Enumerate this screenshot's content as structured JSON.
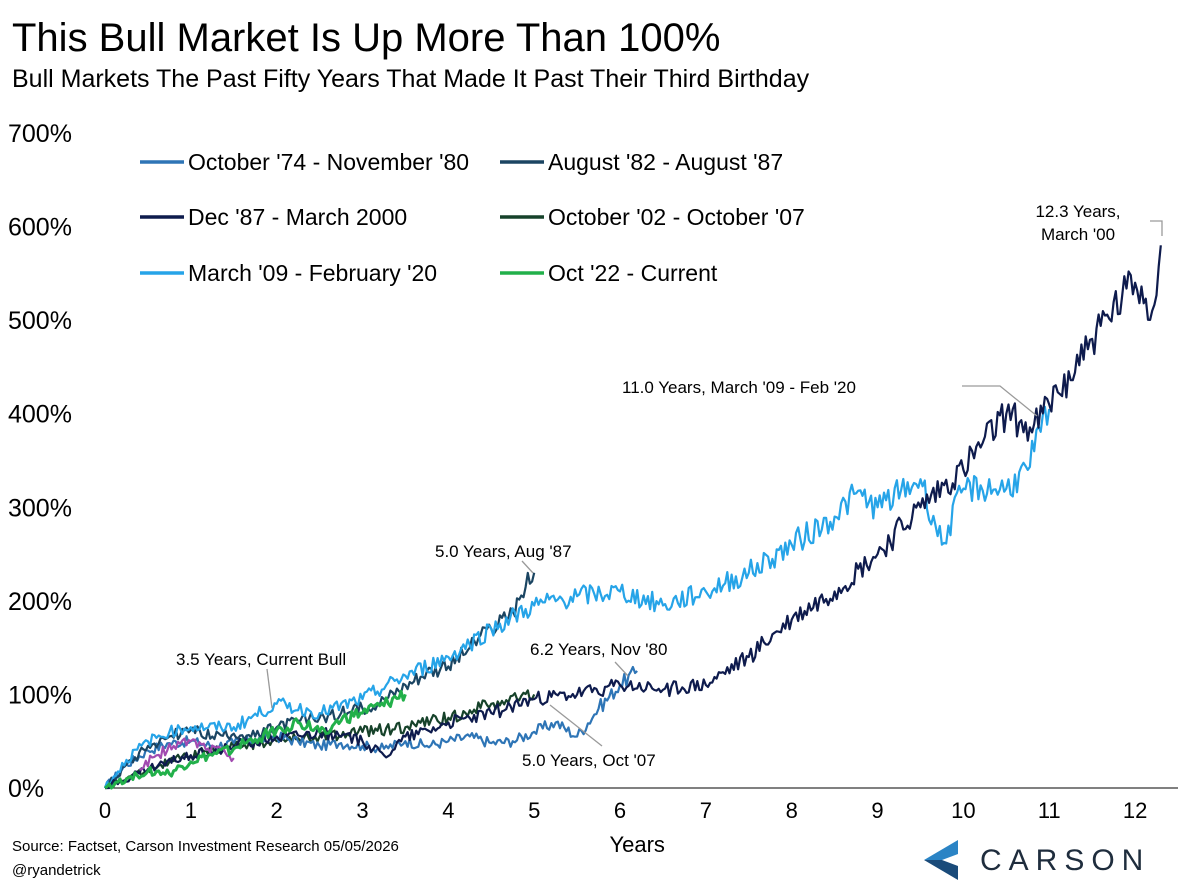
{
  "header": {
    "title": "This Bull Market Is Up More Than 100%",
    "subtitle": "Bull Markets The Past Fifty Years That Made It Past Their Third Birthday"
  },
  "footer": {
    "source": "Source: Factset, Carson Investment Research 05/05/2026",
    "handle": "@ryandetrick",
    "logo_text": "CARSON"
  },
  "chart_data": {
    "type": "line",
    "xlabel": "Years",
    "ylabel": "",
    "xlim": [
      0,
      12.5
    ],
    "ylim": [
      0,
      700
    ],
    "x_ticks": [
      "0",
      "1",
      "2",
      "3",
      "4",
      "5",
      "6",
      "7",
      "8",
      "9",
      "10",
      "11",
      "12"
    ],
    "y_ticks": [
      "0%",
      "100%",
      "200%",
      "300%",
      "400%",
      "500%",
      "600%",
      "700%"
    ],
    "grid": false,
    "legend_position": "top-left",
    "series": [
      {
        "name": "October '74 - November '80",
        "color": "#2e75b6",
        "x": [
          0,
          0.25,
          0.5,
          0.75,
          1,
          1.25,
          1.5,
          1.75,
          2,
          2.25,
          2.5,
          2.75,
          3,
          3.25,
          3.5,
          3.75,
          4,
          4.25,
          4.5,
          4.75,
          5,
          5.25,
          5.5,
          5.75,
          6,
          6.2
        ],
        "y": [
          0,
          25,
          40,
          48,
          50,
          45,
          48,
          52,
          55,
          50,
          45,
          48,
          45,
          42,
          50,
          45,
          50,
          55,
          48,
          50,
          60,
          70,
          55,
          85,
          110,
          125
        ]
      },
      {
        "name": "August '82 - August '87",
        "color": "#1b4562",
        "x": [
          0,
          0.25,
          0.5,
          0.75,
          1,
          1.25,
          1.5,
          1.75,
          2,
          2.25,
          2.5,
          2.75,
          3,
          3.25,
          3.5,
          3.75,
          4,
          4.25,
          4.5,
          4.75,
          5
        ],
        "y": [
          0,
          25,
          45,
          55,
          62,
          55,
          58,
          55,
          65,
          72,
          75,
          80,
          85,
          95,
          110,
          125,
          130,
          150,
          170,
          190,
          230
        ]
      },
      {
        "name": "Dec '87 - March 2000",
        "color": "#0e1b4d",
        "x": [
          0,
          0.5,
          1,
          1.5,
          2,
          2.5,
          3,
          3.25,
          3.5,
          4,
          4.5,
          5,
          5.5,
          6,
          6.5,
          7,
          7.5,
          8,
          8.5,
          9,
          9.5,
          10,
          10.5,
          10.8,
          11,
          11.5,
          12,
          12.2,
          12.3
        ],
        "y": [
          0,
          20,
          35,
          45,
          55,
          60,
          50,
          35,
          55,
          70,
          80,
          95,
          100,
          110,
          105,
          110,
          140,
          180,
          210,
          250,
          300,
          340,
          400,
          380,
          410,
          480,
          540,
          510,
          580
        ]
      },
      {
        "name": "October '02 - October '07",
        "color": "#16422a",
        "x": [
          0,
          0.25,
          0.5,
          0.75,
          1,
          1.5,
          2,
          2.5,
          3,
          3.5,
          4,
          4.5,
          5
        ],
        "y": [
          0,
          10,
          20,
          28,
          35,
          45,
          50,
          55,
          60,
          65,
          75,
          90,
          100
        ]
      },
      {
        "name": "March '09 - February '20",
        "color": "#26a4e8",
        "x": [
          0,
          0.25,
          0.5,
          0.75,
          1,
          1.5,
          2,
          2.5,
          3,
          3.5,
          4,
          4.5,
          5,
          5.5,
          6,
          6.5,
          7,
          7.5,
          8,
          8.5,
          8.75,
          9,
          9.5,
          9.75,
          10,
          10.5,
          10.75,
          11
        ],
        "y": [
          0,
          30,
          50,
          60,
          65,
          65,
          90,
          80,
          95,
          120,
          140,
          170,
          195,
          205,
          210,
          195,
          210,
          230,
          260,
          290,
          315,
          300,
          330,
          260,
          320,
          320,
          340,
          405
        ]
      },
      {
        "name": "Oct '22 - Current",
        "color": "#22b04a",
        "x": [
          0,
          0.25,
          0.5,
          0.75,
          1,
          1.25,
          1.5,
          1.75,
          2,
          2.25,
          2.5,
          2.75,
          3,
          3.25,
          3.5
        ],
        "y": [
          0,
          10,
          18,
          15,
          28,
          35,
          42,
          52,
          62,
          70,
          60,
          72,
          80,
          88,
          100
        ]
      },
      {
        "color": "#a24bb0",
        "x": [
          0.4,
          0.6,
          0.8,
          1,
          1.2,
          1.4,
          1.5
        ],
        "y": [
          20,
          35,
          45,
          50,
          42,
          38,
          32
        ]
      }
    ],
    "annotations": [
      {
        "text": "12.3 Years,",
        "x": 12.3,
        "y": 580
      },
      {
        "text": "March '00",
        "x": 12.3,
        "y": 580
      },
      {
        "text": "11.0 Years, March '09 - Feb '20",
        "x": 11.0,
        "y": 405
      },
      {
        "text": "5.0 Years, Aug '87",
        "x": 5.0,
        "y": 230
      },
      {
        "text": "3.5 Years, Current Bull",
        "x": 3.5,
        "y": 100
      },
      {
        "text": "6.2 Years, Nov '80",
        "x": 6.2,
        "y": 125
      },
      {
        "text": "5.0 Years, Oct '07",
        "x": 5.0,
        "y": 100
      }
    ]
  }
}
